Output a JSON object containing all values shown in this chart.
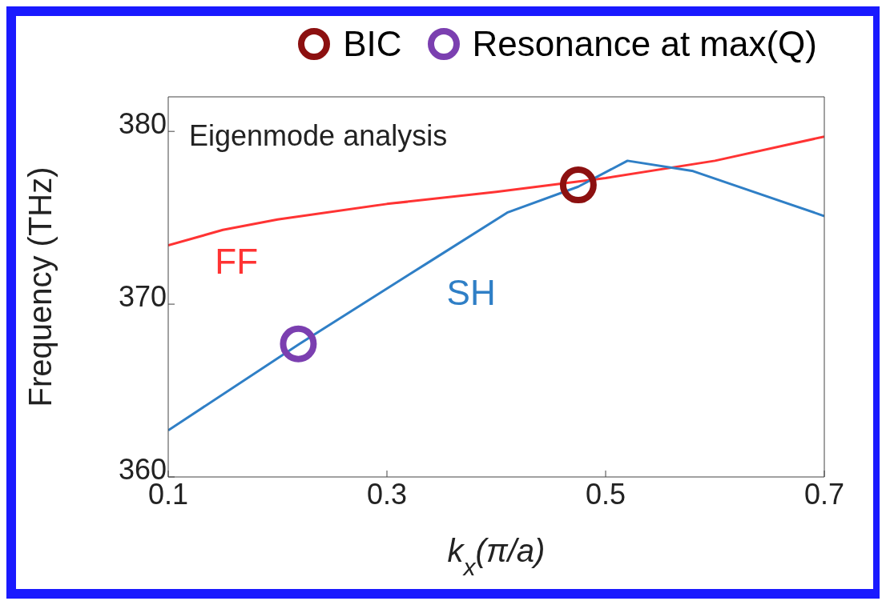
{
  "chart_data": {
    "type": "line",
    "xlabel": "k$_{x}$(π/a)",
    "ylabel": "Frequency (THz)",
    "xlim": [
      0.1,
      0.7
    ],
    "xticks": [
      0.1,
      0.3,
      0.5,
      0.7
    ],
    "ylim": [
      360,
      382
    ],
    "yticks": [
      360,
      370,
      380
    ],
    "grid": false,
    "legend": "top right",
    "marker": "none",
    "annotations": [
      "Eigenmode analysis"
    ],
    "series": [
      {
        "name": "FF",
        "color": "#ff3333",
        "x": [
          0.1,
          0.15,
          0.2,
          0.3,
          0.4,
          0.5,
          0.6,
          0.7
        ],
        "values": [
          373.4,
          374.3,
          374.9,
          375.8,
          376.5,
          377.3,
          378.3,
          379.7
        ]
      },
      {
        "name": "SH",
        "color": "#2f7fc6",
        "x": [
          0.1,
          0.22,
          0.34,
          0.41,
          0.475,
          0.52,
          0.58,
          0.7
        ],
        "values": [
          362.7,
          367.7,
          372.5,
          375.3,
          376.8,
          378.3,
          377.7,
          375.1
        ]
      },
      {
        "name": "BIC",
        "type": "scatter",
        "marker": "circle",
        "color": "#8c1010",
        "x": [
          0.475
        ],
        "values": [
          376.9
        ]
      },
      {
        "name": "Resonance at max(Q)",
        "type": "scatter",
        "marker": "circle",
        "color": "#7b3fb0",
        "x": [
          0.219
        ],
        "values": [
          367.7
        ]
      }
    ]
  }
}
